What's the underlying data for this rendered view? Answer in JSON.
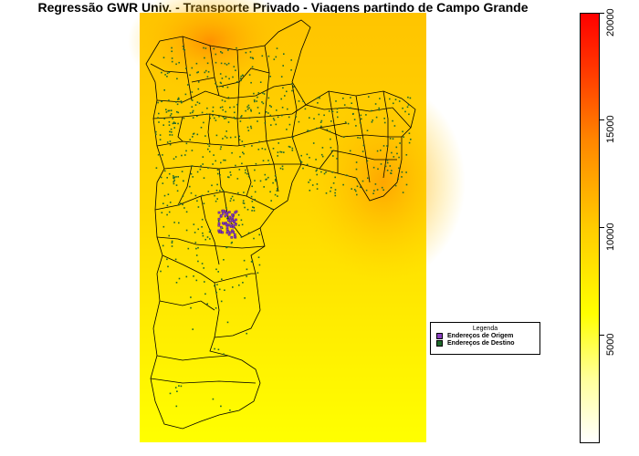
{
  "title": "Regressão GWR Univ. - Transporte Privado - Viagens partindo de Campo Grande",
  "legend": {
    "title": "Legenda",
    "items": [
      {
        "label": "Endereços de Origem",
        "color": "#8a3fbf"
      },
      {
        "label": "Endereços de Destino",
        "color": "#1f6a2c"
      }
    ]
  },
  "scale": {
    "min": 0,
    "max": 20000,
    "ticks": [
      "5000",
      "10000",
      "15000",
      "20000"
    ],
    "colors": [
      "#ffffff",
      "#ffff00",
      "#ff8800",
      "#ff0000"
    ]
  }
}
